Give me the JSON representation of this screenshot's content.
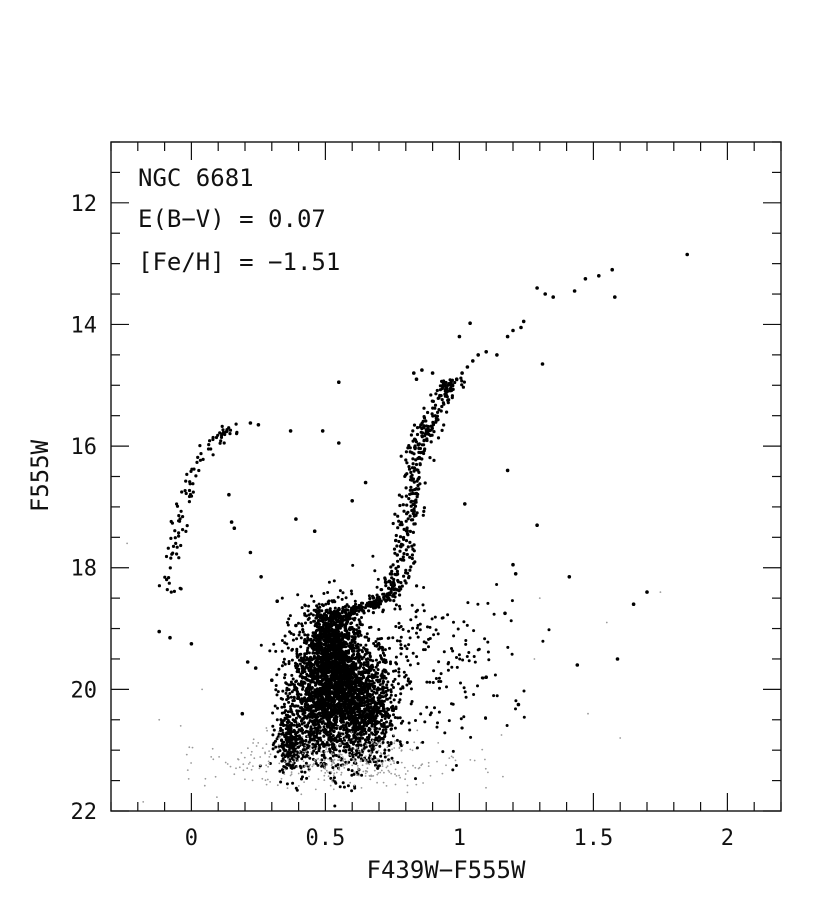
{
  "chart_data": {
    "type": "scatter",
    "xlabel": "F439W−F555W",
    "ylabel": "F555W",
    "xlim": [
      -0.3,
      2.2
    ],
    "ylim": [
      22,
      11
    ],
    "y_inverted": true,
    "grid": false,
    "x_ticks": [
      "0",
      "0.5",
      "1",
      "1.5",
      "2"
    ],
    "x_tick_values": [
      0,
      0.5,
      1,
      1.5,
      2
    ],
    "y_ticks": [
      "12",
      "14",
      "16",
      "18",
      "20",
      "22"
    ],
    "y_tick_values": [
      12,
      14,
      16,
      18,
      20,
      22
    ],
    "annotations": [
      "NGC 6681",
      "E(B−V) = 0.07",
      "[Fe/H] = −1.51"
    ],
    "point_color": "#000000",
    "bright_stars": [
      {
        "x": 1.85,
        "y": 12.85
      },
      {
        "x": 1.57,
        "y": 13.1
      },
      {
        "x": 1.52,
        "y": 13.2
      },
      {
        "x": 1.47,
        "y": 13.25
      },
      {
        "x": 1.43,
        "y": 13.45
      },
      {
        "x": 1.35,
        "y": 13.55
      },
      {
        "x": 1.32,
        "y": 13.5
      },
      {
        "x": 1.29,
        "y": 13.4
      },
      {
        "x": 1.58,
        "y": 13.55
      },
      {
        "x": 1.24,
        "y": 13.95
      },
      {
        "x": 1.23,
        "y": 14.05
      },
      {
        "x": 1.2,
        "y": 14.1
      },
      {
        "x": 1.18,
        "y": 14.2
      },
      {
        "x": 1.14,
        "y": 14.5
      },
      {
        "x": 1.1,
        "y": 14.45
      },
      {
        "x": 1.07,
        "y": 14.5
      },
      {
        "x": 1.04,
        "y": 13.98
      },
      {
        "x": 1.0,
        "y": 14.2
      },
      {
        "x": 1.31,
        "y": 14.65
      },
      {
        "x": 1.05,
        "y": 14.6
      },
      {
        "x": 1.03,
        "y": 14.7
      },
      {
        "x": 1.01,
        "y": 14.8
      },
      {
        "x": 0.99,
        "y": 14.9
      },
      {
        "x": 0.97,
        "y": 15.0
      },
      {
        "x": 0.83,
        "y": 14.8
      },
      {
        "x": 0.84,
        "y": 14.9
      },
      {
        "x": 0.86,
        "y": 14.75
      },
      {
        "x": 0.9,
        "y": 14.8
      },
      {
        "x": 0.55,
        "y": 14.95
      },
      {
        "x": 0.55,
        "y": 15.95
      },
      {
        "x": 0.49,
        "y": 15.75
      },
      {
        "x": 0.37,
        "y": 15.75
      },
      {
        "x": 0.25,
        "y": 15.65
      },
      {
        "x": 0.22,
        "y": 15.62
      },
      {
        "x": 0.6,
        "y": 16.9
      },
      {
        "x": 1.18,
        "y": 16.4
      },
      {
        "x": 1.02,
        "y": 16.95
      },
      {
        "x": 0.65,
        "y": 16.6
      },
      {
        "x": 1.29,
        "y": 17.3
      },
      {
        "x": 0.39,
        "y": 17.2
      },
      {
        "x": 0.46,
        "y": 17.4
      },
      {
        "x": 0.14,
        "y": 16.8
      },
      {
        "x": 0.15,
        "y": 17.25
      },
      {
        "x": 0.16,
        "y": 17.35
      },
      {
        "x": 0.22,
        "y": 17.75
      },
      {
        "x": 0.26,
        "y": 18.15
      },
      {
        "x": 1.2,
        "y": 17.95
      },
      {
        "x": 1.21,
        "y": 18.1
      },
      {
        "x": 1.41,
        "y": 18.15
      },
      {
        "x": 1.7,
        "y": 18.4
      },
      {
        "x": 1.65,
        "y": 18.6
      },
      {
        "x": 1.59,
        "y": 19.5
      },
      {
        "x": 1.44,
        "y": 19.6
      },
      {
        "x": 1.17,
        "y": 18.75
      },
      {
        "x": 0.0,
        "y": 19.25
      },
      {
        "x": -0.08,
        "y": 19.15
      },
      {
        "x": -0.12,
        "y": 19.05
      },
      {
        "x": 0.21,
        "y": 19.55
      },
      {
        "x": 0.24,
        "y": 19.65
      },
      {
        "x": 0.3,
        "y": 19.85
      },
      {
        "x": 0.19,
        "y": 20.4
      },
      {
        "x": 1.22,
        "y": 20.25
      },
      {
        "x": 1.1,
        "y": 19.8
      },
      {
        "x": 0.36,
        "y": 20.45
      },
      {
        "x": 0.39,
        "y": 18.95
      },
      {
        "x": 0.32,
        "y": 18.55
      }
    ],
    "faint_stars": [
      {
        "x": -0.24,
        "y": 17.6
      },
      {
        "x": 0.04,
        "y": 20.0
      },
      {
        "x": -0.12,
        "y": 20.5
      },
      {
        "x": -0.04,
        "y": 20.6
      },
      {
        "x": 1.3,
        "y": 18.5
      },
      {
        "x": 1.55,
        "y": 18.9
      },
      {
        "x": 1.6,
        "y": 20.8
      },
      {
        "x": 1.48,
        "y": 20.4
      },
      {
        "x": 1.28,
        "y": 19.5
      },
      {
        "x": -0.18,
        "y": 21.85
      },
      {
        "x": 1.75,
        "y": 18.4
      },
      {
        "x": 0.28,
        "y": 20.9
      }
    ],
    "dense_sequences": [
      {
        "name": "",
        "segments": [
          {
            "x": 0.37,
            "y": 20.9,
            "sx": 0.025,
            "sy": 0.25,
            "n": 260
          },
          {
            "x": 0.46,
            "y": 20.1,
            "sx": 0.06,
            "sy": 0.55,
            "n": 900
          },
          {
            "x": 0.56,
            "y": 20.1,
            "sx": 0.06,
            "sy": 0.55,
            "n": 1100
          },
          {
            "x": 0.66,
            "y": 20.3,
            "sx": 0.05,
            "sy": 0.45,
            "n": 700
          },
          {
            "x": 0.53,
            "y": 19.4,
            "sx": 0.045,
            "sy": 0.35,
            "n": 700
          },
          {
            "x": 0.52,
            "y": 19.0,
            "sx": 0.05,
            "sy": 0.2,
            "n": 250
          }
        ]
      },
      {
        "name": "",
        "curve": [
          {
            "x": 0.52,
            "y": 18.85
          },
          {
            "x": 0.6,
            "y": 18.7
          },
          {
            "x": 0.68,
            "y": 18.6
          },
          {
            "x": 0.76,
            "y": 18.4
          },
          {
            "x": 0.78,
            "y": 18.0
          },
          {
            "x": 0.8,
            "y": 17.4
          },
          {
            "x": 0.82,
            "y": 16.8
          },
          {
            "x": 0.84,
            "y": 16.2
          },
          {
            "x": 0.87,
            "y": 15.8
          },
          {
            "x": 0.91,
            "y": 15.5
          },
          {
            "x": 0.95,
            "y": 15.15
          },
          {
            "x": 0.98,
            "y": 14.9
          }
        ],
        "n": 520,
        "scatter": 0.022
      },
      {
        "name": "",
        "curve": [
          {
            "x": -0.1,
            "y": 18.45
          },
          {
            "x": -0.08,
            "y": 18.0
          },
          {
            "x": -0.06,
            "y": 17.6
          },
          {
            "x": -0.04,
            "y": 17.2
          },
          {
            "x": -0.02,
            "y": 16.8
          },
          {
            "x": 0.0,
            "y": 16.5
          },
          {
            "x": 0.03,
            "y": 16.2
          },
          {
            "x": 0.07,
            "y": 15.95
          },
          {
            "x": 0.12,
            "y": 15.8
          },
          {
            "x": 0.17,
            "y": 15.65
          }
        ],
        "n": 95,
        "scatter": 0.02
      },
      {
        "name": "",
        "spread": {
          "x": 0.55,
          "y": 21.15,
          "sx": 0.22,
          "sy": 0.22,
          "n": 380,
          "faint": true
        }
      },
      {
        "name": "",
        "spread": {
          "x": 0.75,
          "y": 19.6,
          "sx": 0.2,
          "sy": 0.7,
          "n": 260
        }
      },
      {
        "name": "",
        "spread": {
          "x": 0.92,
          "y": 19.8,
          "sx": 0.12,
          "sy": 0.8,
          "n": 60
        }
      }
    ]
  }
}
